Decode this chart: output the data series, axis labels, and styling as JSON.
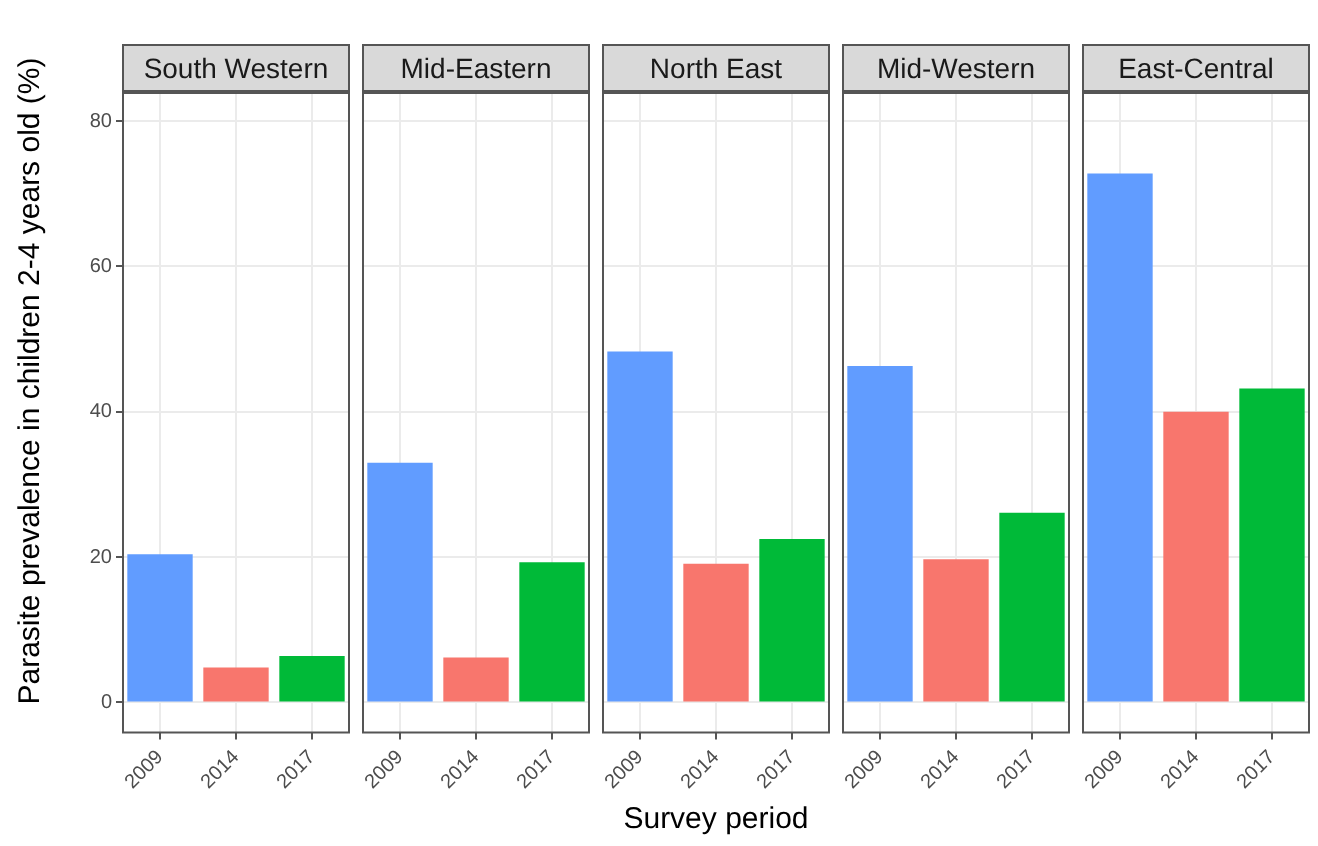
{
  "chart_data": [
    {
      "type": "bar",
      "title": "South Western",
      "ylabel": "Parasite prevalence in children 2-4 years old (%)",
      "categories": [
        "2009",
        "2014",
        "2017"
      ],
      "values": [
        20.4,
        4.8,
        6.4
      ],
      "colors": [
        "#619cff",
        "#f8766d",
        "#00ba38"
      ],
      "ylim": [
        -4,
        84
      ],
      "yticks": [
        0,
        20,
        40,
        60,
        80
      ],
      "grid": true,
      "legend": false
    },
    {
      "type": "bar",
      "title": "Mid-Eastern",
      "categories": [
        "2009",
        "2014",
        "2017"
      ],
      "values": [
        33.0,
        6.2,
        19.3
      ],
      "colors": [
        "#619cff",
        "#f8766d",
        "#00ba38"
      ],
      "ylim": [
        -4,
        84
      ],
      "yticks": [
        0,
        20,
        40,
        60,
        80
      ],
      "grid": true,
      "legend": false,
      "tick_labels": "x"
    },
    {
      "type": "bar",
      "title": "North East",
      "xlabel": "Survey period",
      "categories": [
        "2009",
        "2014",
        "2017"
      ],
      "values": [
        48.3,
        19.1,
        22.5
      ],
      "colors": [
        "#619cff",
        "#f8766d",
        "#00ba38"
      ],
      "ylim": [
        -4,
        84
      ],
      "yticks": [
        0,
        20,
        40,
        60,
        80
      ],
      "grid": true,
      "legend": false,
      "tick_labels": "x"
    },
    {
      "type": "bar",
      "title": "Mid-Western",
      "categories": [
        "2009",
        "2014",
        "2017"
      ],
      "values": [
        46.3,
        19.7,
        26.1
      ],
      "colors": [
        "#619cff",
        "#f8766d",
        "#00ba38"
      ],
      "ylim": [
        -4,
        84
      ],
      "yticks": [
        0,
        20,
        40,
        60,
        80
      ],
      "grid": true,
      "legend": false,
      "tick_labels": "x"
    },
    {
      "type": "bar",
      "title": "East-Central",
      "categories": [
        "2009",
        "2014",
        "2017"
      ],
      "values": [
        72.8,
        40.0,
        43.2
      ],
      "colors": [
        "#619cff",
        "#f8766d",
        "#00ba38"
      ],
      "ylim": [
        -4,
        84
      ],
      "yticks": [
        0,
        20,
        40,
        60,
        80
      ],
      "grid": true,
      "legend": false,
      "tick_labels": "x"
    }
  ]
}
